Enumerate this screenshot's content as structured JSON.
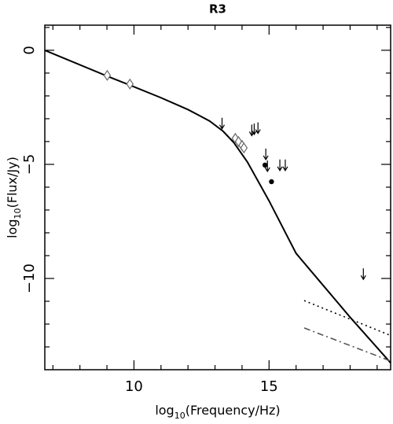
{
  "chart_data": {
    "type": "line",
    "title": "R3",
    "x_label": "log10(Frequency/Hz)",
    "y_label": "log10(Flux/Jy)",
    "xlim": [
      6.7,
      19.5
    ],
    "ylim": [
      -14,
      1.1
    ],
    "xticks": [
      10,
      15
    ],
    "xminorticks": [
      7,
      8,
      9,
      11,
      12,
      13,
      14,
      16,
      17,
      18,
      19
    ],
    "yticks": [
      0,
      {
        "value": -5,
        "label": "−5"
      },
      {
        "value": -10,
        "label": "−10"
      }
    ],
    "yminorticks": [
      1,
      -1,
      -2,
      -3,
      -4,
      -6,
      -7,
      -8,
      -9,
      -11,
      -12,
      -13
    ],
    "grid": false,
    "series": [
      {
        "style": "solid",
        "color": "#000000",
        "x": [
          6.7,
          9,
          10,
          11,
          12,
          12.8,
          13.3,
          13.7,
          14.2,
          15,
          16,
          17,
          18,
          19.5
        ],
        "y": [
          0,
          -1.13,
          -1.6,
          -2.08,
          -2.6,
          -3.1,
          -3.55,
          -4.05,
          -4.9,
          -6.6,
          -8.9,
          -10.3,
          -11.7,
          -13.7
        ]
      },
      {
        "style": "diamond",
        "color": "#666666",
        "x": [
          9.01,
          9.85,
          13.75,
          13.87,
          14.0,
          14.07
        ],
        "y": [
          -1.1,
          -1.48,
          -3.86,
          -4.0,
          -4.17,
          -4.28
        ]
      },
      {
        "style": "upper-limit",
        "color": "#000000",
        "x": [
          13.26,
          14.36,
          14.45,
          14.59,
          14.88,
          14.94,
          15.4,
          15.6,
          18.49
        ],
        "y": [
          -3.2,
          -3.5,
          -3.45,
          -3.4,
          -4.55,
          -5.07,
          -5.03,
          -5.03,
          -9.8
        ]
      },
      {
        "style": "dot",
        "color": "#000000",
        "x": [
          14.85,
          15.09
        ],
        "y": [
          -5.03,
          -5.76
        ]
      },
      {
        "style": "dotted",
        "color": "#000000",
        "x": [
          16.3,
          19.5
        ],
        "y": [
          -10.97,
          -12.5
        ]
      },
      {
        "style": "dashdot",
        "color": "#555555",
        "x": [
          16.3,
          19.5
        ],
        "y": [
          -12.17,
          -13.62
        ]
      }
    ]
  }
}
